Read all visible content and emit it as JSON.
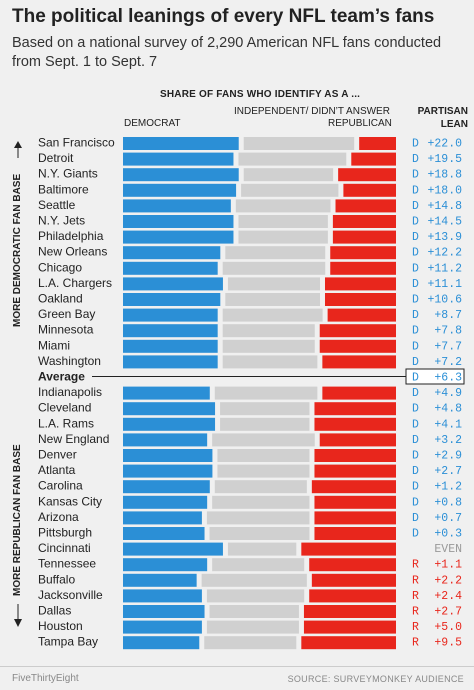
{
  "title": "The political leanings of every NFL team’s fans",
  "subtitle": "Based on a national survey of 2,290 American NFL fans conducted from Sept. 1 to Sept. 7",
  "column_header": "SHARE OF FANS WHO IDENTIFY AS A ...",
  "labels": {
    "democrat": "DEMOCRAT",
    "independent": "INDEPENDENT/ DIDN’T ANSWER",
    "republican": "REPUBLICAN",
    "partisan_lean": "PARTISAN LEAN"
  },
  "side_labels": {
    "top": "MORE DEMOCRATIC FAN BASE",
    "bottom": "MORE REPUBLICAN FAN BASE"
  },
  "footer": {
    "left": "FiveThirtyEight",
    "right": "SOURCE: SURVEYMONKEY AUDIENCE"
  },
  "colors": {
    "democrat": "#2b8fd6",
    "independent": "#d0d0d0",
    "republican": "#e8261c",
    "lean_dem": "#2b8fd6",
    "lean_rep": "#e8261c",
    "lean_even": "#999999"
  },
  "chart_data": {
    "type": "bar",
    "stacked": true,
    "orientation": "horizontal",
    "series_names": [
      "Democrat",
      "Independent/Didn't answer",
      "Republican"
    ],
    "rows": [
      {
        "team": "San Francisco",
        "dem": 44,
        "ind": 42,
        "rep": 14,
        "lean": "D +22.0",
        "side": "D"
      },
      {
        "team": "Detroit",
        "dem": 42,
        "ind": 41,
        "rep": 17,
        "lean": "D +19.5",
        "side": "D"
      },
      {
        "team": "N.Y. Giants",
        "dem": 44,
        "ind": 34,
        "rep": 22,
        "lean": "D +18.8",
        "side": "D"
      },
      {
        "team": "Baltimore",
        "dem": 43,
        "ind": 37,
        "rep": 20,
        "lean": "D +18.0",
        "side": "D"
      },
      {
        "team": "Seattle",
        "dem": 41,
        "ind": 36,
        "rep": 23,
        "lean": "D +14.8",
        "side": "D"
      },
      {
        "team": "N.Y. Jets",
        "dem": 42,
        "ind": 34,
        "rep": 24,
        "lean": "D +14.5",
        "side": "D"
      },
      {
        "team": "Philadelphia",
        "dem": 42,
        "ind": 34,
        "rep": 24,
        "lean": "D +13.9",
        "side": "D"
      },
      {
        "team": "New Orleans",
        "dem": 37,
        "ind": 38,
        "rep": 25,
        "lean": "D +12.2",
        "side": "D"
      },
      {
        "team": "Chicago",
        "dem": 36,
        "ind": 39,
        "rep": 25,
        "lean": "D +11.2",
        "side": "D"
      },
      {
        "team": "L.A. Chargers",
        "dem": 38,
        "ind": 35,
        "rep": 27,
        "lean": "D +11.1",
        "side": "D"
      },
      {
        "team": "Oakland",
        "dem": 37,
        "ind": 36,
        "rep": 27,
        "lean": "D +10.6",
        "side": "D"
      },
      {
        "team": "Green Bay",
        "dem": 36,
        "ind": 38,
        "rep": 26,
        "lean": "D +8.7",
        "side": "D"
      },
      {
        "team": "Minnesota",
        "dem": 36,
        "ind": 35,
        "rep": 29,
        "lean": "D +7.8",
        "side": "D"
      },
      {
        "team": "Miami",
        "dem": 36,
        "ind": 35,
        "rep": 29,
        "lean": "D +7.7",
        "side": "D"
      },
      {
        "team": "Washington",
        "dem": 36,
        "ind": 36,
        "rep": 28,
        "lean": "D +7.2",
        "side": "D"
      },
      {
        "team": "Average",
        "average": true,
        "lean": "D +6.3",
        "side": "D"
      },
      {
        "team": "Indianapolis",
        "dem": 33,
        "ind": 39,
        "rep": 28,
        "lean": "D +4.9",
        "side": "D"
      },
      {
        "team": "Cleveland",
        "dem": 35,
        "ind": 34,
        "rep": 31,
        "lean": "D +4.8",
        "side": "D"
      },
      {
        "team": "L.A. Rams",
        "dem": 35,
        "ind": 34,
        "rep": 31,
        "lean": "D +4.1",
        "side": "D"
      },
      {
        "team": "New England",
        "dem": 32,
        "ind": 39,
        "rep": 29,
        "lean": "D +3.2",
        "side": "D"
      },
      {
        "team": "Denver",
        "dem": 34,
        "ind": 35,
        "rep": 31,
        "lean": "D +2.9",
        "side": "D"
      },
      {
        "team": "Atlanta",
        "dem": 34,
        "ind": 35,
        "rep": 31,
        "lean": "D +2.7",
        "side": "D"
      },
      {
        "team": "Carolina",
        "dem": 33,
        "ind": 35,
        "rep": 32,
        "lean": "D +1.2",
        "side": "D"
      },
      {
        "team": "Kansas City",
        "dem": 32,
        "ind": 37,
        "rep": 31,
        "lean": "D +0.8",
        "side": "D"
      },
      {
        "team": "Arizona",
        "dem": 30,
        "ind": 39,
        "rep": 31,
        "lean": "D +0.7",
        "side": "D"
      },
      {
        "team": "Pittsburgh",
        "dem": 31,
        "ind": 38,
        "rep": 31,
        "lean": "D +0.3",
        "side": "D"
      },
      {
        "team": "Cincinnati",
        "dem": 38,
        "ind": 26,
        "rep": 36,
        "lean": "EVEN",
        "side": "E"
      },
      {
        "team": "Tennessee",
        "dem": 32,
        "ind": 35,
        "rep": 33,
        "lean": "R +1.1",
        "side": "R"
      },
      {
        "team": "Buffalo",
        "dem": 28,
        "ind": 40,
        "rep": 32,
        "lean": "R +2.2",
        "side": "R"
      },
      {
        "team": "Jacksonville",
        "dem": 30,
        "ind": 37,
        "rep": 33,
        "lean": "R +2.4",
        "side": "R"
      },
      {
        "team": "Dallas",
        "dem": 31,
        "ind": 34,
        "rep": 35,
        "lean": "R +2.7",
        "side": "R"
      },
      {
        "team": "Houston",
        "dem": 30,
        "ind": 35,
        "rep": 35,
        "lean": "R +5.0",
        "side": "R"
      },
      {
        "team": "Tampa Bay",
        "dem": 29,
        "ind": 35,
        "rep": 36,
        "lean": "R +9.5",
        "side": "R"
      }
    ]
  }
}
